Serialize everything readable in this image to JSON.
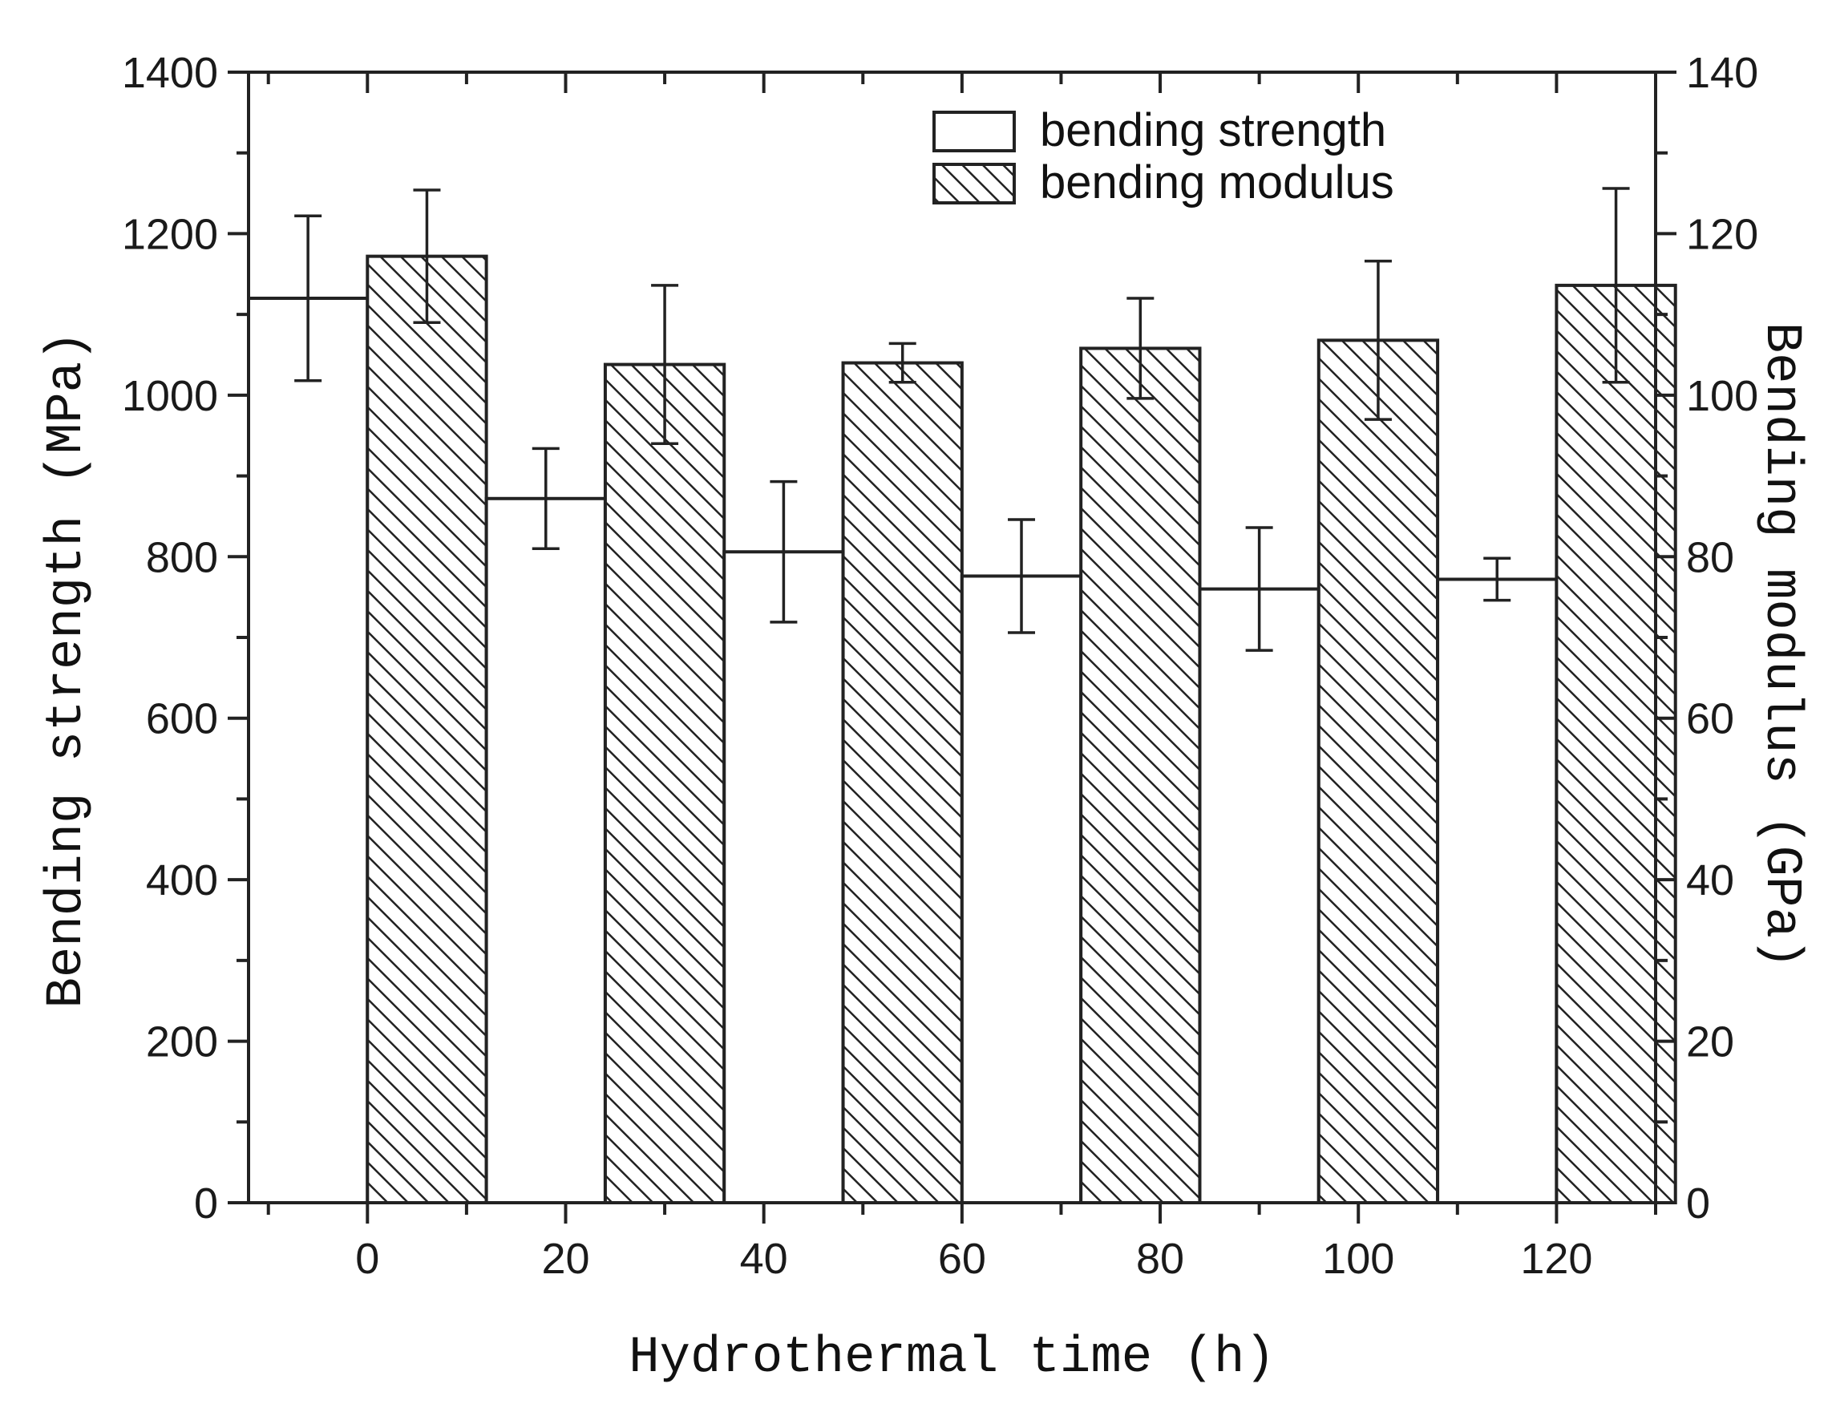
{
  "chart_data": {
    "type": "bar",
    "title": "",
    "xlabel": "Hydrothermal time (h)",
    "ylabel": "Bending strength (MPa)",
    "ylabel_right": "Bending modulus (GPa)",
    "x_ticks": [
      0,
      20,
      40,
      60,
      80,
      100,
      120
    ],
    "x_range": [
      -12,
      130
    ],
    "ylim": [
      0,
      1400
    ],
    "y_ticks": [
      0,
      200,
      400,
      600,
      800,
      1000,
      1200,
      1400
    ],
    "ylim_right": [
      0,
      140
    ],
    "y_ticks_right": [
      0,
      20,
      40,
      60,
      80,
      100,
      120,
      140
    ],
    "groups": [
      0,
      24,
      48,
      72,
      96,
      120
    ],
    "series": [
      {
        "name": "bending strength",
        "axis": "left",
        "pattern": "open",
        "values": [
          1120,
          872,
          806,
          776,
          760,
          772
        ],
        "errors": [
          102,
          62,
          87,
          70,
          76,
          26
        ]
      },
      {
        "name": "bending modulus",
        "axis": "right",
        "pattern": "hatched",
        "values": [
          117.2,
          103.8,
          104.0,
          105.8,
          106.8,
          113.6
        ],
        "errors": [
          8.2,
          9.8,
          2.4,
          6.2,
          9.8,
          12.0
        ]
      }
    ],
    "legend": {
      "position": "top-right",
      "entries": [
        "bending strength",
        "bending modulus"
      ]
    }
  }
}
